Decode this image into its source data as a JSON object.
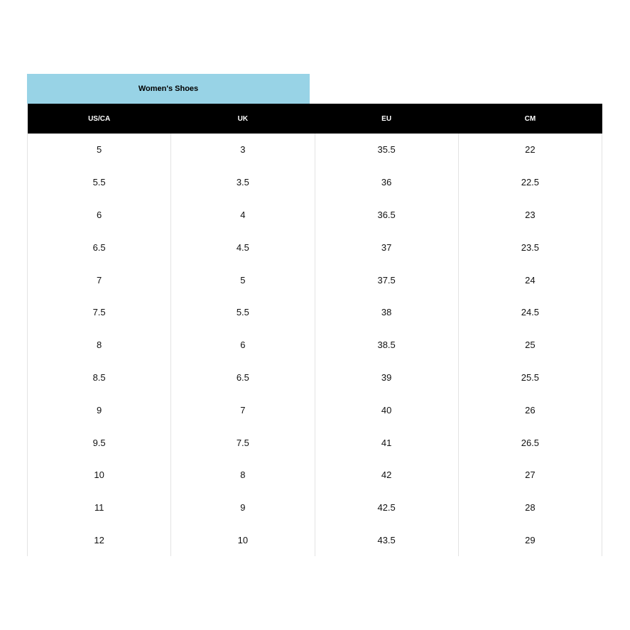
{
  "title": "Women's Shoes",
  "headers": [
    "US/CA",
    "UK",
    "EU",
    "CM"
  ],
  "rows": [
    [
      "5",
      "3",
      "35.5",
      "22"
    ],
    [
      "5.5",
      "3.5",
      "36",
      "22.5"
    ],
    [
      "6",
      "4",
      "36.5",
      "23"
    ],
    [
      "6.5",
      "4.5",
      "37",
      "23.5"
    ],
    [
      "7",
      "5",
      "37.5",
      "24"
    ],
    [
      "7.5",
      "5.5",
      "38",
      "24.5"
    ],
    [
      "8",
      "6",
      "38.5",
      "25"
    ],
    [
      "8.5",
      "6.5",
      "39",
      "25.5"
    ],
    [
      "9",
      "7",
      "40",
      "26"
    ],
    [
      "9.5",
      "7.5",
      "41",
      "26.5"
    ],
    [
      "10",
      "8",
      "42",
      "27"
    ],
    [
      "11",
      "9",
      "42.5",
      "28"
    ],
    [
      "12",
      "10",
      "43.5",
      "29"
    ]
  ],
  "colors": {
    "title_bg": "#98d3e6",
    "header_bg": "#000000"
  }
}
